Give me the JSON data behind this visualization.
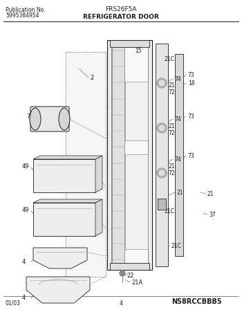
{
  "title_model": "FRS26F5A",
  "title_section": "REFRIGERATOR DOOR",
  "pub_no_label": "Publication No.",
  "pub_no_value": "5995384954",
  "footer_date": "01/03",
  "footer_page": "4",
  "catalog_no": "N58RCCBBB5",
  "bg_color": "#ffffff",
  "line_color": "#1a1a1a",
  "label_color": "#111111"
}
